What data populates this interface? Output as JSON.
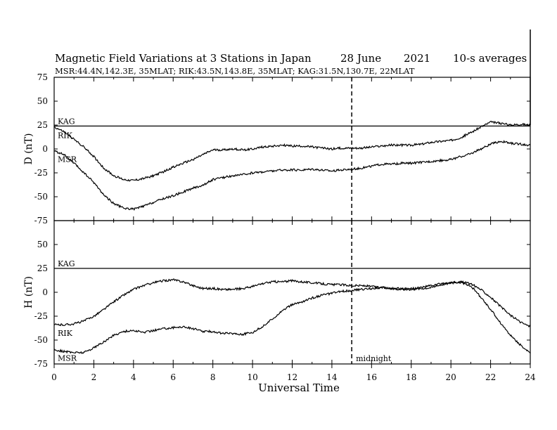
{
  "chart_data": {
    "type": "line",
    "title": {
      "text": "Magnetic Field Variations at 3 Stations in Japan",
      "date": "28 June",
      "year": "2021",
      "averaging": "10-s averages"
    },
    "subtitle": "MSR:44.4N,142.3E, 35MLAT;  RIK:43.5N,143.8E, 35MLAT;  KAG:31.5N,130.7E, 22MLAT",
    "xlabel": "Universal Time",
    "xlim": [
      0,
      24
    ],
    "x_ticks": [
      "0",
      "2",
      "4",
      "6",
      "8",
      "10",
      "12",
      "14",
      "16",
      "18",
      "20",
      "22",
      "24"
    ],
    "marker_line": {
      "x": 15,
      "label": "midnight",
      "style": "dashed"
    },
    "panels": [
      {
        "ylabel": "D (nT)",
        "ylim": [
          -75,
          75
        ],
        "y_ticks": [
          "75",
          "50",
          "25",
          "0",
          "-25",
          "-50",
          "-75"
        ],
        "station_labels": {
          "KAG": "KAG",
          "RIK": "RIK",
          "MSR": "MSR"
        },
        "series": [
          {
            "name": "KAG",
            "style": "flat",
            "values": [
              [
                0,
                24
              ],
              [
                24,
                24
              ]
            ]
          },
          {
            "name": "RIK",
            "values": [
              [
                0,
                23
              ],
              [
                0.5,
                18
              ],
              [
                1,
                10
              ],
              [
                1.5,
                2
              ],
              [
                2,
                -8
              ],
              [
                2.5,
                -20
              ],
              [
                3,
                -28
              ],
              [
                3.5,
                -32
              ],
              [
                4,
                -33
              ],
              [
                4.5,
                -31
              ],
              [
                5,
                -28
              ],
              [
                5.5,
                -24
              ],
              [
                6,
                -19
              ],
              [
                6.5,
                -15
              ],
              [
                7,
                -11
              ],
              [
                7.5,
                -6
              ],
              [
                8,
                -1
              ],
              [
                8.5,
                -1
              ],
              [
                9,
                0
              ],
              [
                9.5,
                -1
              ],
              [
                10,
                0
              ],
              [
                10.5,
                2
              ],
              [
                11,
                3
              ],
              [
                11.5,
                4
              ],
              [
                12,
                3
              ],
              [
                12.5,
                3
              ],
              [
                13,
                2
              ],
              [
                13.5,
                1
              ],
              [
                14,
                0
              ],
              [
                14.5,
                1
              ],
              [
                15,
                1
              ],
              [
                15.5,
                1
              ],
              [
                16,
                2
              ],
              [
                16.5,
                3
              ],
              [
                17,
                4
              ],
              [
                17.5,
                4
              ],
              [
                18,
                4
              ],
              [
                18.5,
                5
              ],
              [
                19,
                7
              ],
              [
                19.5,
                8
              ],
              [
                20,
                9
              ],
              [
                20.5,
                12
              ],
              [
                21,
                17
              ],
              [
                21.5,
                23
              ],
              [
                22,
                28
              ],
              [
                22.5,
                27
              ],
              [
                23,
                25
              ],
              [
                23.5,
                26
              ],
              [
                24,
                25
              ]
            ]
          },
          {
            "name": "MSR",
            "values": [
              [
                0,
                -2
              ],
              [
                0.5,
                -6
              ],
              [
                1,
                -15
              ],
              [
                1.5,
                -25
              ],
              [
                2,
                -35
              ],
              [
                2.5,
                -48
              ],
              [
                3,
                -57
              ],
              [
                3.5,
                -62
              ],
              [
                4,
                -63
              ],
              [
                4.5,
                -60
              ],
              [
                5,
                -56
              ],
              [
                5.5,
                -52
              ],
              [
                6,
                -49
              ],
              [
                6.5,
                -45
              ],
              [
                7,
                -41
              ],
              [
                7.5,
                -38
              ],
              [
                8,
                -32
              ],
              [
                8.5,
                -30
              ],
              [
                9,
                -28
              ],
              [
                9.5,
                -27
              ],
              [
                10,
                -25
              ],
              [
                10.5,
                -24
              ],
              [
                11,
                -23
              ],
              [
                11.5,
                -22
              ],
              [
                12,
                -22
              ],
              [
                12.5,
                -22
              ],
              [
                13,
                -21
              ],
              [
                13.5,
                -22
              ],
              [
                14,
                -23
              ],
              [
                14.5,
                -22
              ],
              [
                15,
                -21
              ],
              [
                15.5,
                -20
              ],
              [
                16,
                -18
              ],
              [
                16.5,
                -16
              ],
              [
                17,
                -16
              ],
              [
                17.5,
                -15
              ],
              [
                18,
                -15
              ],
              [
                18.5,
                -14
              ],
              [
                19,
                -13
              ],
              [
                19.5,
                -12
              ],
              [
                20,
                -11
              ],
              [
                20.5,
                -8
              ],
              [
                21,
                -5
              ],
              [
                21.5,
                0
              ],
              [
                22,
                5
              ],
              [
                22.5,
                8
              ],
              [
                23,
                6
              ],
              [
                23.5,
                5
              ],
              [
                24,
                4
              ]
            ]
          }
        ]
      },
      {
        "ylabel": "H (nT)",
        "ylim": [
          -75,
          75
        ],
        "y_ticks": [
          "75",
          "50",
          "25",
          "0",
          "-25",
          "-50",
          "-75"
        ],
        "station_labels": {
          "KAG": "KAG",
          "RIK": "RIK",
          "MSR": "MSR"
        },
        "series": [
          {
            "name": "KAG",
            "style": "flat",
            "values": [
              [
                0,
                25
              ],
              [
                24,
                25
              ]
            ]
          },
          {
            "name": "RIK",
            "values": [
              [
                0,
                -34
              ],
              [
                0.5,
                -34
              ],
              [
                1,
                -33
              ],
              [
                1.5,
                -30
              ],
              [
                2,
                -25
              ],
              [
                2.5,
                -18
              ],
              [
                3,
                -10
              ],
              [
                3.5,
                -3
              ],
              [
                4,
                3
              ],
              [
                4.5,
                7
              ],
              [
                5,
                10
              ],
              [
                5.5,
                12
              ],
              [
                6,
                13
              ],
              [
                6.5,
                11
              ],
              [
                7,
                7
              ],
              [
                7.5,
                4
              ],
              [
                8,
                4
              ],
              [
                8.5,
                3
              ],
              [
                9,
                3
              ],
              [
                9.5,
                4
              ],
              [
                10,
                6
              ],
              [
                10.5,
                9
              ],
              [
                11,
                11
              ],
              [
                11.5,
                11
              ],
              [
                12,
                12
              ],
              [
                12.5,
                11
              ],
              [
                13,
                10
              ],
              [
                13.5,
                9
              ],
              [
                14,
                8
              ],
              [
                14.5,
                8
              ],
              [
                15,
                7
              ],
              [
                15.5,
                7
              ],
              [
                16,
                6
              ],
              [
                16.5,
                5
              ],
              [
                17,
                4
              ],
              [
                17.5,
                3
              ],
              [
                18,
                3
              ],
              [
                18.5,
                4
              ],
              [
                19,
                5
              ],
              [
                19.5,
                8
              ],
              [
                20,
                10
              ],
              [
                20.5,
                11
              ],
              [
                21,
                9
              ],
              [
                21.5,
                3
              ],
              [
                22,
                -5
              ],
              [
                22.5,
                -15
              ],
              [
                23,
                -24
              ],
              [
                23.5,
                -31
              ],
              [
                24,
                -36
              ]
            ]
          },
          {
            "name": "MSR",
            "values": [
              [
                0,
                -60
              ],
              [
                0.5,
                -62
              ],
              [
                1,
                -63
              ],
              [
                1.5,
                -63
              ],
              [
                2,
                -58
              ],
              [
                2.5,
                -52
              ],
              [
                3,
                -45
              ],
              [
                3.5,
                -41
              ],
              [
                4,
                -40
              ],
              [
                4.5,
                -42
              ],
              [
                5,
                -40
              ],
              [
                5.5,
                -38
              ],
              [
                6,
                -37
              ],
              [
                6.5,
                -36
              ],
              [
                7,
                -38
              ],
              [
                7.5,
                -41
              ],
              [
                8,
                -41
              ],
              [
                8.5,
                -43
              ],
              [
                9,
                -43
              ],
              [
                9.5,
                -44
              ],
              [
                10,
                -42
              ],
              [
                10.5,
                -36
              ],
              [
                11,
                -28
              ],
              [
                11.5,
                -19
              ],
              [
                12,
                -13
              ],
              [
                12.5,
                -10
              ],
              [
                13,
                -6
              ],
              [
                13.5,
                -3
              ],
              [
                14,
                -1
              ],
              [
                14.5,
                1
              ],
              [
                15,
                2
              ],
              [
                15.5,
                3
              ],
              [
                16,
                4
              ],
              [
                16.5,
                5
              ],
              [
                17,
                4
              ],
              [
                17.5,
                4
              ],
              [
                18,
                4
              ],
              [
                18.5,
                5
              ],
              [
                19,
                7
              ],
              [
                19.5,
                9
              ],
              [
                20,
                10
              ],
              [
                20.5,
                10
              ],
              [
                21,
                7
              ],
              [
                21.5,
                -5
              ],
              [
                22,
                -18
              ],
              [
                22.5,
                -32
              ],
              [
                23,
                -45
              ],
              [
                23.5,
                -55
              ],
              [
                24,
                -64
              ]
            ]
          }
        ]
      }
    ]
  }
}
